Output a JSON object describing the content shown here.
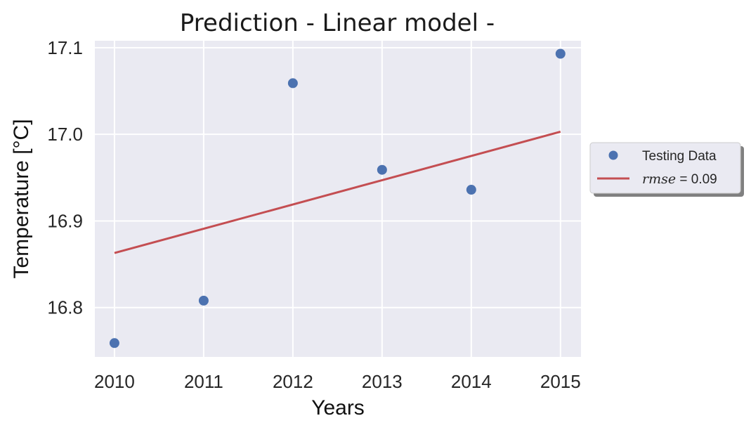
{
  "chart_data": {
    "type": "scatter",
    "title": "Prediction - Linear model -",
    "xlabel": "Years",
    "ylabel": "Temperature [°C]",
    "xlim": [
      2009.78,
      2015.23
    ],
    "ylim": [
      16.743,
      17.108
    ],
    "x_ticks": [
      2010,
      2011,
      2012,
      2013,
      2014,
      2015
    ],
    "x_tick_labels": [
      "2010",
      "2011",
      "2012",
      "2013",
      "2014",
      "2015"
    ],
    "y_ticks": [
      16.8,
      16.9,
      17.0,
      17.1
    ],
    "y_tick_labels": [
      "16.8",
      "16.9",
      "17.0",
      "17.1"
    ],
    "grid": true,
    "background_color": "#eaeaf2",
    "grid_color": "#ffffff",
    "legend_placement": "right outside",
    "series": [
      {
        "name": "Testing Data",
        "kind": "points",
        "color": "#4c72b0",
        "x": [
          2010,
          2011,
          2012,
          2013,
          2014,
          2015
        ],
        "y": [
          16.759,
          16.808,
          17.059,
          16.959,
          16.936,
          17.093
        ]
      },
      {
        "name": "rmse = 0.09",
        "kind": "line",
        "color": "#c44e52",
        "x": [
          2010,
          2015
        ],
        "y": [
          16.863,
          17.003
        ]
      }
    ],
    "legend": {
      "testing_label": "Testing Data",
      "rmse_italic": "rmse",
      "rmse_value": " = 0.09"
    }
  }
}
